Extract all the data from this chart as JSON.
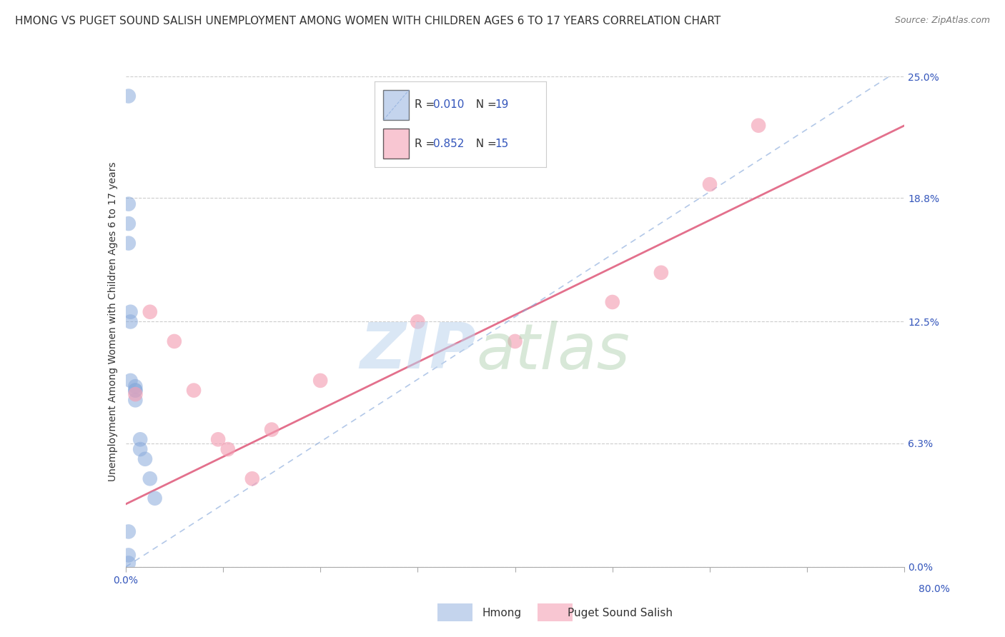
{
  "title": "HMONG VS PUGET SOUND SALISH UNEMPLOYMENT AMONG WOMEN WITH CHILDREN AGES 6 TO 17 YEARS CORRELATION CHART",
  "source": "Source: ZipAtlas.com",
  "ylabel": "Unemployment Among Women with Children Ages 6 to 17 years",
  "ytick_values": [
    0.0,
    6.3,
    12.5,
    18.8,
    25.0
  ],
  "xtick_values": [
    0.0,
    10.0,
    20.0,
    30.0,
    40.0,
    50.0,
    60.0,
    70.0,
    80.0
  ],
  "xlim": [
    0.0,
    80.0
  ],
  "ylim": [
    0.0,
    25.0
  ],
  "hmong_R": "0.010",
  "hmong_N": "19",
  "salish_R": "0.852",
  "salish_N": "15",
  "hmong_color": "#8AABDC",
  "salish_color": "#F4A0B5",
  "hmong_line_color": "#8AABDC",
  "salish_line_color": "#E06080",
  "background_color": "#FFFFFF",
  "legend_text_color": "#3355BB",
  "hmong_x": [
    0.3,
    0.3,
    0.3,
    0.3,
    0.5,
    0.5,
    0.5,
    1.0,
    1.0,
    1.0,
    1.0,
    1.5,
    1.5,
    2.0,
    2.5,
    3.0,
    0.3,
    0.3,
    0.3
  ],
  "hmong_y": [
    24.0,
    18.5,
    17.5,
    16.5,
    13.0,
    12.5,
    9.5,
    9.2,
    9.0,
    9.0,
    8.5,
    6.5,
    6.0,
    5.5,
    4.5,
    3.5,
    1.8,
    0.6,
    0.2
  ],
  "salish_x": [
    1.0,
    2.5,
    5.0,
    7.0,
    9.5,
    10.5,
    13.0,
    15.0,
    20.0,
    30.0,
    40.0,
    50.0,
    60.0,
    65.0,
    55.0
  ],
  "salish_y": [
    8.8,
    13.0,
    11.5,
    9.0,
    6.5,
    6.0,
    4.5,
    7.0,
    9.5,
    12.5,
    11.5,
    13.5,
    19.5,
    22.5,
    15.0
  ],
  "hmong_trend_x0": 0.0,
  "hmong_trend_y0": 0.0,
  "hmong_trend_x1": 80.0,
  "hmong_trend_y1": 25.5,
  "salish_trend_x0": 0.0,
  "salish_trend_y0": 3.2,
  "salish_trend_x1": 80.0,
  "salish_trend_y1": 22.5,
  "watermark_zip": "ZIP",
  "watermark_atlas": "atlas",
  "title_fontsize": 11,
  "label_fontsize": 10
}
